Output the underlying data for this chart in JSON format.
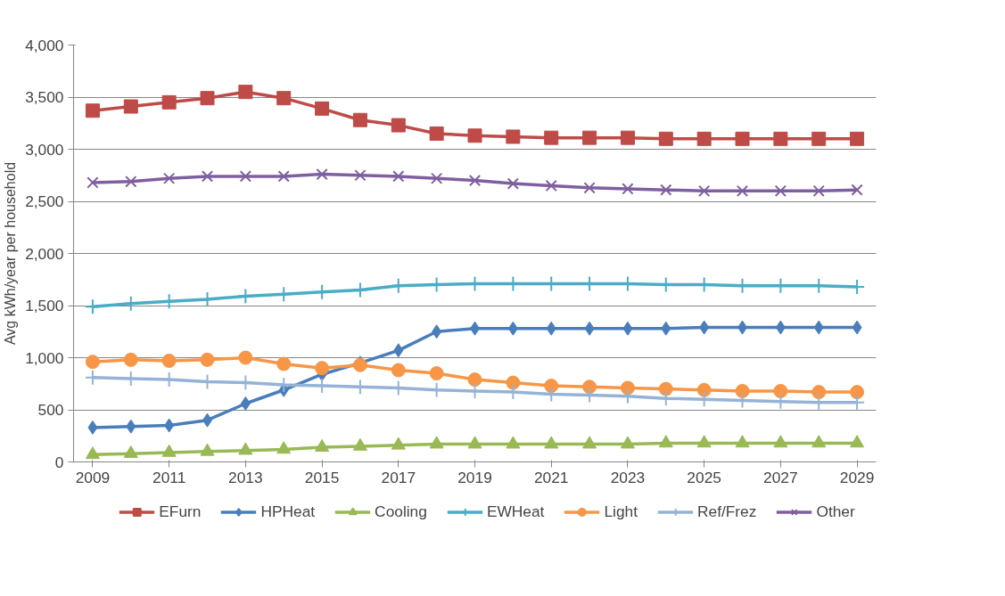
{
  "chart_data": {
    "type": "line",
    "ylabel": "Avg kWh/year per household",
    "x": [
      2009,
      2010,
      2011,
      2012,
      2013,
      2014,
      2015,
      2016,
      2017,
      2018,
      2019,
      2020,
      2021,
      2022,
      2023,
      2024,
      2025,
      2026,
      2027,
      2028,
      2029
    ],
    "xlim": [
      2008.5,
      2029.5
    ],
    "xticks": [
      2009,
      2011,
      2013,
      2015,
      2017,
      2019,
      2021,
      2023,
      2025,
      2027,
      2029
    ],
    "ylim": [
      0,
      4000
    ],
    "yticks": [
      0,
      {
        "value": 500,
        "label": "500"
      },
      {
        "value": 1000,
        "label": "1,000"
      },
      {
        "value": 1500,
        "label": "1,500"
      },
      {
        "value": 2000,
        "label": "2,000"
      },
      {
        "value": 2500,
        "label": "2,500"
      },
      {
        "value": 3000,
        "label": "3,000"
      },
      {
        "value": 3500,
        "label": "3,500"
      },
      {
        "value": 4000,
        "label": "4,000"
      }
    ],
    "grid": "y",
    "legend": "bottom",
    "line_style": "solid",
    "series": [
      {
        "name": "EFurn",
        "color": "#be4b48",
        "marker": "square",
        "values": [
          3370,
          3410,
          3450,
          3490,
          3550,
          3490,
          3390,
          3280,
          3230,
          3150,
          3130,
          3120,
          3110,
          3110,
          3110,
          3100,
          3100,
          3100,
          3100,
          3100,
          3100
        ]
      },
      {
        "name": "HPHeat",
        "color": "#4a7ebb",
        "marker": "diamond",
        "values": [
          330,
          340,
          350,
          400,
          560,
          690,
          840,
          950,
          1070,
          1250,
          1280,
          1280,
          1280,
          1280,
          1280,
          1280,
          1290,
          1290,
          1290,
          1290,
          1290
        ]
      },
      {
        "name": "Cooling",
        "color": "#98b954",
        "marker": "triangle",
        "values": [
          70,
          80,
          90,
          100,
          110,
          120,
          140,
          150,
          160,
          170,
          170,
          170,
          170,
          170,
          170,
          180,
          180,
          180,
          180,
          180,
          180
        ]
      },
      {
        "name": "EWHeat",
        "color": "#4bacc6",
        "marker": "cross",
        "values": [
          1490,
          1520,
          1540,
          1560,
          1590,
          1610,
          1630,
          1650,
          1690,
          1700,
          1710,
          1710,
          1710,
          1710,
          1710,
          1700,
          1700,
          1690,
          1690,
          1690,
          1680
        ]
      },
      {
        "name": "Light",
        "color": "#f79646",
        "marker": "circle",
        "values": [
          960,
          980,
          970,
          980,
          1000,
          940,
          900,
          930,
          880,
          850,
          790,
          760,
          730,
          720,
          710,
          700,
          690,
          680,
          680,
          670,
          670
        ]
      },
      {
        "name": "Ref/Frez",
        "color": "#95b3d7",
        "marker": "cross",
        "values": [
          810,
          800,
          790,
          770,
          760,
          740,
          730,
          720,
          710,
          690,
          680,
          670,
          650,
          640,
          630,
          610,
          600,
          590,
          580,
          570,
          570
        ]
      },
      {
        "name": "Other",
        "color": "#7f5fa0",
        "marker": "x",
        "values": [
          2680,
          2690,
          2720,
          2740,
          2740,
          2740,
          2760,
          2750,
          2740,
          2720,
          2700,
          2670,
          2650,
          2630,
          2620,
          2610,
          2600,
          2600,
          2600,
          2600,
          2610
        ]
      }
    ]
  }
}
